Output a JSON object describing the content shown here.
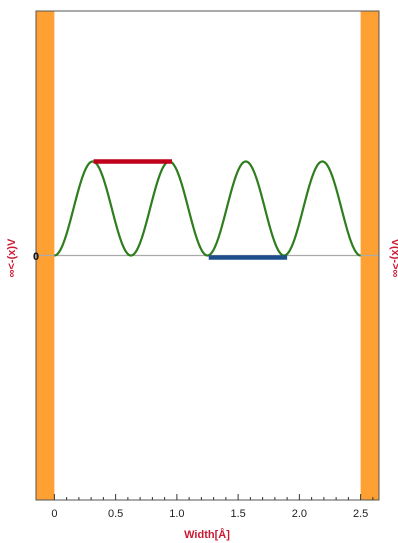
{
  "chart_data": {
    "type": "line",
    "xlabel": "Width[Å]",
    "x_ticks": [
      0,
      0.5,
      1.0,
      1.5,
      2.0,
      2.5
    ],
    "x_tick_labels": [
      "0",
      "0.5",
      "1.0",
      "1.5",
      "2.0",
      "2.5"
    ],
    "xlim": [
      -0.15,
      2.65
    ],
    "ylim": [
      -2.6,
      2.6
    ],
    "zero_label": "0",
    "left_wall_label": "∞<-(x)V",
    "right_wall_label": "V(x)->∞",
    "walls": [
      {
        "name": "left-wall",
        "x0": -0.15,
        "x1": 0.0
      },
      {
        "name": "right-wall",
        "x0": 2.5,
        "x1": 2.65
      }
    ],
    "wavefunction": {
      "expression": "sin(4·pi·x/2.5)^2",
      "x_range": [
        0,
        2.5
      ],
      "amplitude": 1.0,
      "color": "#2e7d1e"
    },
    "red_bar": {
      "x0": 0.32,
      "x1": 0.96,
      "y": 1.0,
      "color": "#c0001a"
    },
    "blue_bar": {
      "x0": 1.26,
      "x1": 1.9,
      "y": 0.0,
      "color": "#1f4e8c"
    },
    "colors": {
      "wall": "#ffa033",
      "wall_edge": "#d07a10",
      "label_red": "#cc1a33",
      "baseline": "#aaaaaa",
      "frame": "#555555"
    }
  }
}
